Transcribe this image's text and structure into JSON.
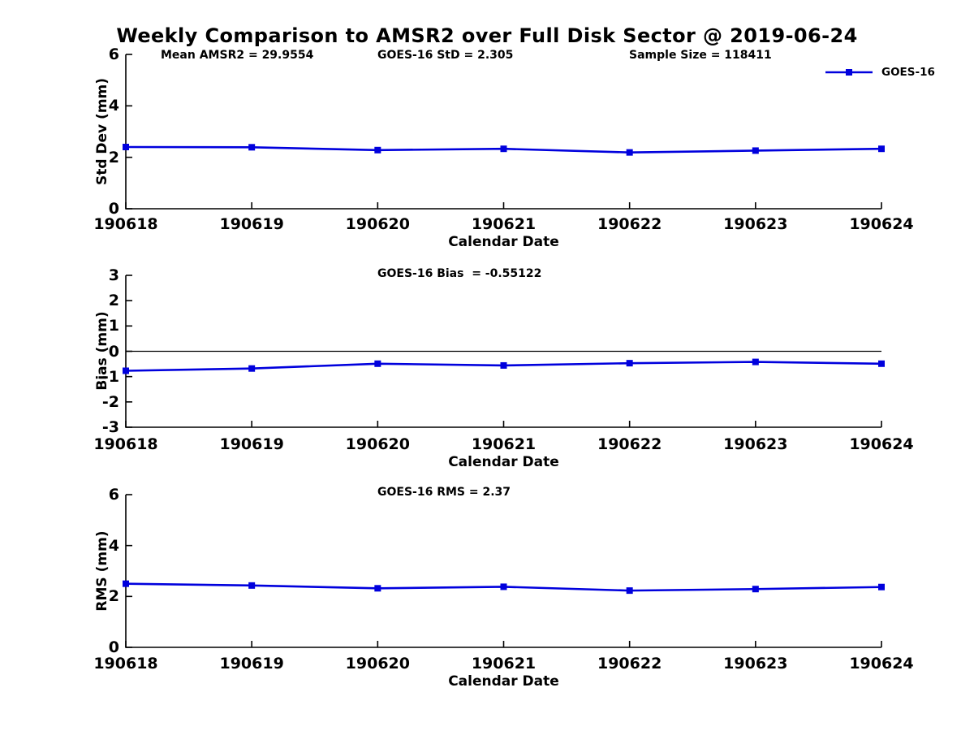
{
  "title": "Weekly Comparison to AMSR2 over Full Disk Sector @ 2019-06-24",
  "xlabel": "Calendar Date",
  "legend": {
    "label": "GOES-16"
  },
  "colors": {
    "line": "#0000dd",
    "axis": "#000000",
    "text": "#000000",
    "background": "#ffffff"
  },
  "categories": [
    "190618",
    "190619",
    "190620",
    "190621",
    "190622",
    "190623",
    "190624"
  ],
  "chart_data": [
    {
      "type": "line",
      "name": "std-dev",
      "ylabel": "Std Dev (mm)",
      "ylim": [
        0,
        6
      ],
      "yticks": [
        0,
        2,
        4,
        6
      ],
      "grid": false,
      "legend_position": "top-right-no-box",
      "annotations": [
        {
          "label": "Mean AMSR2 = 29.9554"
        },
        {
          "label": "GOES-16 StD = 2.305"
        },
        {
          "label": "Sample Size = 118411"
        }
      ],
      "series": [
        {
          "name": "GOES-16",
          "marker": "square",
          "values": [
            2.4,
            2.39,
            2.28,
            2.33,
            2.19,
            2.26,
            2.33
          ]
        }
      ]
    },
    {
      "type": "line",
      "name": "bias",
      "ylabel": "Bias (mm)",
      "ylim": [
        -3,
        3
      ],
      "yticks": [
        -3,
        -2,
        -1,
        0,
        1,
        2,
        3
      ],
      "grid": false,
      "zero_line": true,
      "annotations": [
        {
          "label": "GOES-16 Bias  = -0.55122"
        }
      ],
      "series": [
        {
          "name": "GOES-16",
          "marker": "square",
          "values": [
            -0.77,
            -0.68,
            -0.49,
            -0.56,
            -0.47,
            -0.42,
            -0.49
          ]
        }
      ]
    },
    {
      "type": "line",
      "name": "rms",
      "ylabel": "RMS (mm)",
      "ylim": [
        0,
        6
      ],
      "yticks": [
        0,
        2,
        4,
        6
      ],
      "grid": false,
      "annotations": [
        {
          "label": "GOES-16 RMS = 2.37"
        }
      ],
      "series": [
        {
          "name": "GOES-16",
          "marker": "square",
          "values": [
            2.5,
            2.43,
            2.32,
            2.38,
            2.23,
            2.29,
            2.37
          ]
        }
      ]
    }
  ]
}
